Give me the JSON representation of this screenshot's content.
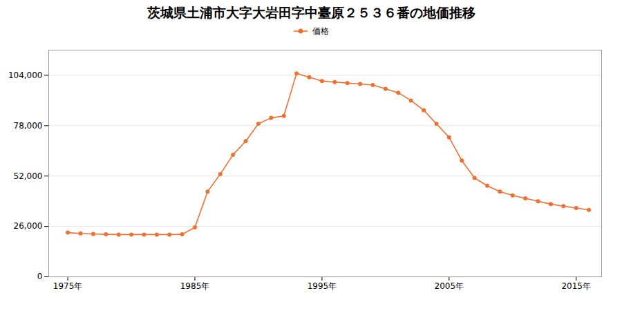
{
  "chart_data": {
    "type": "line",
    "title": "茨城県土浦市大字大岩田字中臺原２５３６番の地価推移",
    "x": [
      1975,
      1976,
      1977,
      1978,
      1979,
      1980,
      1981,
      1982,
      1983,
      1984,
      1985,
      1986,
      1987,
      1988,
      1989,
      1990,
      1991,
      1992,
      1993,
      1994,
      1995,
      1996,
      1997,
      1998,
      1999,
      2000,
      2001,
      2002,
      2003,
      2004,
      2005,
      2006,
      2007,
      2008,
      2009,
      2010,
      2011,
      2012,
      2013,
      2014,
      2015,
      2016
    ],
    "series": [
      {
        "name": "価格",
        "color": "#f07030",
        "marker": "circle",
        "values": [
          22800,
          22400,
          22100,
          21900,
          21800,
          21800,
          21800,
          21800,
          21800,
          21900,
          25500,
          44000,
          53000,
          63000,
          70000,
          79000,
          82000,
          83000,
          105000,
          103000,
          101000,
          100500,
          100000,
          99500,
          99000,
          97000,
          95000,
          91000,
          86000,
          79000,
          72000,
          60000,
          51000,
          47000,
          44000,
          42000,
          40500,
          39000,
          37500,
          36500,
          35500,
          34500
        ]
      }
    ],
    "xlim": [
      1973.5,
      2017
    ],
    "xticks": [
      {
        "value": 1975,
        "label": "1975年"
      },
      {
        "value": 1985,
        "label": "1985年"
      },
      {
        "value": 1995,
        "label": "1995年"
      },
      {
        "value": 2005,
        "label": "2005年"
      },
      {
        "value": 2015,
        "label": "2015年"
      }
    ],
    "ylim": [
      0,
      117000
    ],
    "yticks": [
      0,
      {
        "value": 26000,
        "label": "26,000"
      },
      {
        "value": 52000,
        "label": "52,000"
      },
      {
        "value": 78000,
        "label": "78,000"
      },
      {
        "value": 104000,
        "label": "104,000"
      }
    ],
    "grid": "y",
    "legend": "top"
  }
}
